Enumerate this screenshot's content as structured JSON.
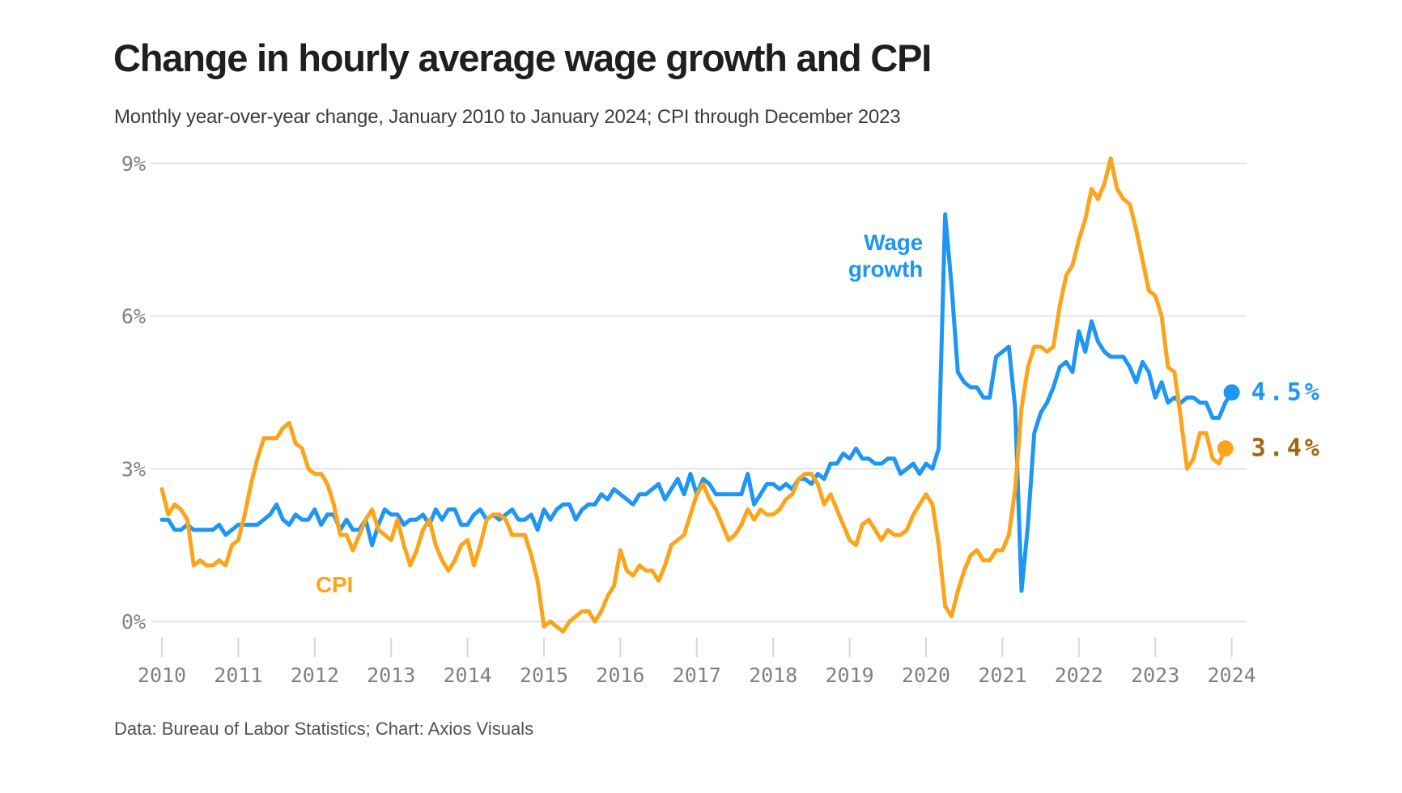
{
  "header": {
    "title": "Change in hourly average wage growth and CPI",
    "subtitle": "Monthly year-over-year change, January 2010 to January 2024; CPI through December 2023"
  },
  "footer": {
    "credit": "Data: Bureau of Labor Statistics; Chart: Axios Visuals"
  },
  "colors": {
    "wage": "#1e96f3",
    "cpi": "#fca41b",
    "wage_value_label": "#1e96f3",
    "cpi_value_label": "#a3660a",
    "grid": "#e4e4e4",
    "tick": "#d8d8d8",
    "axis_text": "#818181"
  },
  "labels": {
    "wage_line1": "Wage",
    "wage_line2": "growth",
    "cpi": "CPI",
    "wage_end_value": "4.5%",
    "cpi_end_value": "3.4%"
  },
  "chart_data": {
    "type": "line",
    "title": "Change in hourly average wage growth and CPI",
    "subtitle": "Monthly year-over-year change, January 2010 to January 2024; CPI through December 2023",
    "x_unit": "month",
    "x_start": "2010-01",
    "x_tick_labels": [
      "2010",
      "2011",
      "2012",
      "2013",
      "2014",
      "2015",
      "2016",
      "2017",
      "2018",
      "2019",
      "2020",
      "2021",
      "2022",
      "2023",
      "2024"
    ],
    "y_gridlines": [
      9,
      6,
      3,
      0
    ],
    "y_tick_labels": [
      "9%",
      "6%",
      "3%",
      "0%"
    ],
    "ylabel": "",
    "xlabel": "",
    "legend_position": "inline-annotations",
    "grid": true,
    "series": [
      {
        "name": "Wage growth",
        "color_key": "wage",
        "end_label": "4.5%",
        "values": [
          2.0,
          2.0,
          1.8,
          1.8,
          1.9,
          1.8,
          1.8,
          1.8,
          1.8,
          1.9,
          1.7,
          1.8,
          1.9,
          1.9,
          1.9,
          1.9,
          2.0,
          2.1,
          2.3,
          2.0,
          1.9,
          2.1,
          2.0,
          2.0,
          2.2,
          1.9,
          2.1,
          2.1,
          1.8,
          2.0,
          1.8,
          1.8,
          2.0,
          1.5,
          1.9,
          2.2,
          2.1,
          2.1,
          1.9,
          2.0,
          2.0,
          2.1,
          1.9,
          2.2,
          2.0,
          2.2,
          2.2,
          1.9,
          1.9,
          2.1,
          2.2,
          2.0,
          2.1,
          2.0,
          2.1,
          2.2,
          2.0,
          2.0,
          2.1,
          1.8,
          2.2,
          2.0,
          2.2,
          2.3,
          2.3,
          2.0,
          2.2,
          2.3,
          2.3,
          2.5,
          2.4,
          2.6,
          2.5,
          2.4,
          2.3,
          2.5,
          2.5,
          2.6,
          2.7,
          2.4,
          2.6,
          2.8,
          2.5,
          2.9,
          2.5,
          2.8,
          2.7,
          2.5,
          2.5,
          2.5,
          2.5,
          2.5,
          2.9,
          2.3,
          2.5,
          2.7,
          2.7,
          2.6,
          2.7,
          2.6,
          2.8,
          2.8,
          2.7,
          2.9,
          2.8,
          3.1,
          3.1,
          3.3,
          3.2,
          3.4,
          3.2,
          3.2,
          3.1,
          3.1,
          3.2,
          3.2,
          2.9,
          3.0,
          3.1,
          2.9,
          3.1,
          3.0,
          3.4,
          8.0,
          6.6,
          4.9,
          4.7,
          4.6,
          4.6,
          4.4,
          4.4,
          5.2,
          5.3,
          5.4,
          4.2,
          0.6,
          1.9,
          3.7,
          4.1,
          4.3,
          4.6,
          5.0,
          5.1,
          4.9,
          5.7,
          5.3,
          5.9,
          5.5,
          5.3,
          5.2,
          5.2,
          5.2,
          5.0,
          4.7,
          5.1,
          4.9,
          4.4,
          4.7,
          4.3,
          4.4,
          4.3,
          4.4,
          4.4,
          4.3,
          4.3,
          4.0,
          4.0,
          4.3,
          4.5
        ]
      },
      {
        "name": "CPI",
        "color_key": "cpi",
        "end_label": "3.4%",
        "values": [
          2.6,
          2.1,
          2.3,
          2.2,
          2.0,
          1.1,
          1.2,
          1.1,
          1.1,
          1.2,
          1.1,
          1.5,
          1.6,
          2.1,
          2.7,
          3.2,
          3.6,
          3.6,
          3.6,
          3.8,
          3.9,
          3.5,
          3.4,
          3.0,
          2.9,
          2.9,
          2.7,
          2.3,
          1.7,
          1.7,
          1.4,
          1.7,
          2.0,
          2.2,
          1.8,
          1.7,
          1.6,
          2.0,
          1.5,
          1.1,
          1.4,
          1.8,
          2.0,
          1.5,
          1.2,
          1.0,
          1.2,
          1.5,
          1.6,
          1.1,
          1.5,
          2.0,
          2.1,
          2.1,
          2.0,
          1.7,
          1.7,
          1.7,
          1.3,
          0.8,
          -0.1,
          0.0,
          -0.1,
          -0.2,
          0.0,
          0.1,
          0.2,
          0.2,
          0.0,
          0.2,
          0.5,
          0.7,
          1.4,
          1.0,
          0.9,
          1.1,
          1.0,
          1.0,
          0.8,
          1.1,
          1.5,
          1.6,
          1.7,
          2.1,
          2.5,
          2.7,
          2.4,
          2.2,
          1.9,
          1.6,
          1.7,
          1.9,
          2.2,
          2.0,
          2.2,
          2.1,
          2.1,
          2.2,
          2.4,
          2.5,
          2.8,
          2.9,
          2.9,
          2.7,
          2.3,
          2.5,
          2.2,
          1.9,
          1.6,
          1.5,
          1.9,
          2.0,
          1.8,
          1.6,
          1.8,
          1.7,
          1.7,
          1.8,
          2.1,
          2.3,
          2.5,
          2.3,
          1.5,
          0.3,
          0.1,
          0.6,
          1.0,
          1.3,
          1.4,
          1.2,
          1.2,
          1.4,
          1.4,
          1.7,
          2.6,
          4.2,
          5.0,
          5.4,
          5.4,
          5.3,
          5.4,
          6.2,
          6.8,
          7.0,
          7.5,
          7.9,
          8.5,
          8.3,
          8.6,
          9.1,
          8.5,
          8.3,
          8.2,
          7.7,
          7.1,
          6.5,
          6.4,
          6.0,
          5.0,
          4.9,
          4.0,
          3.0,
          3.2,
          3.7,
          3.7,
          3.2,
          3.1,
          3.4
        ]
      }
    ]
  }
}
